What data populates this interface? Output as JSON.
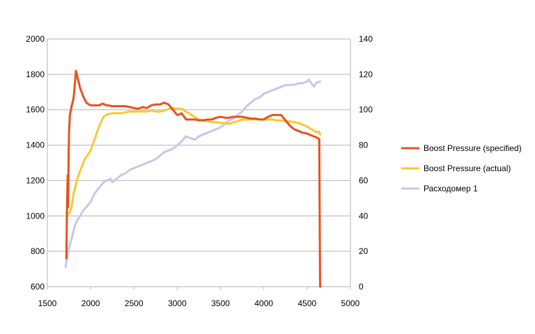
{
  "chart_data": {
    "type": "line",
    "title": "",
    "xlabel": "",
    "ylabel": "",
    "y2label": "",
    "xlim": [
      1500,
      5000
    ],
    "ylim": [
      600,
      2000
    ],
    "y2lim": [
      0,
      140
    ],
    "x_ticks": [
      "1500",
      "2000",
      "2500",
      "3000",
      "3500",
      "4000",
      "4500",
      "5000"
    ],
    "y_ticks": [
      "600",
      "800",
      "1000",
      "1200",
      "1400",
      "1600",
      "1800",
      "2000"
    ],
    "y2_ticks": [
      "0",
      "20",
      "40",
      "60",
      "80",
      "100",
      "120",
      "140"
    ],
    "grid": "horizontal",
    "legend_position": "right",
    "series": [
      {
        "name": "Boost Pressure (specified)",
        "color": "#e8501c",
        "axis": "left",
        "x": [
          1720,
          1725,
          1735,
          1740,
          1745,
          1750,
          1760,
          1780,
          1800,
          1810,
          1820,
          1830,
          1850,
          1880,
          1920,
          1950,
          1980,
          2000,
          2050,
          2100,
          2120,
          2140,
          2160,
          2180,
          2200,
          2250,
          2300,
          2350,
          2400,
          2450,
          2500,
          2550,
          2600,
          2650,
          2700,
          2750,
          2800,
          2850,
          2900,
          2950,
          3000,
          3030,
          3050,
          3080,
          3100,
          3150,
          3200,
          3250,
          3300,
          3350,
          3400,
          3450,
          3500,
          3550,
          3600,
          3650,
          3700,
          3750,
          3800,
          3850,
          3900,
          3950,
          4000,
          4050,
          4100,
          4150,
          4200,
          4250,
          4300,
          4350,
          4400,
          4450,
          4500,
          4550,
          4600,
          4640,
          4645,
          4650,
          4655
        ],
        "y": [
          760,
          1010,
          1230,
          1050,
          1330,
          1470,
          1570,
          1620,
          1660,
          1700,
          1760,
          1820,
          1780,
          1720,
          1670,
          1640,
          1630,
          1625,
          1625,
          1625,
          1630,
          1635,
          1630,
          1625,
          1625,
          1620,
          1620,
          1620,
          1620,
          1615,
          1610,
          1605,
          1615,
          1610,
          1625,
          1630,
          1630,
          1640,
          1630,
          1600,
          1570,
          1575,
          1580,
          1560,
          1545,
          1545,
          1545,
          1540,
          1540,
          1545,
          1545,
          1555,
          1560,
          1555,
          1555,
          1560,
          1560,
          1560,
          1555,
          1550,
          1550,
          1545,
          1545,
          1560,
          1570,
          1570,
          1570,
          1540,
          1510,
          1490,
          1480,
          1470,
          1465,
          1455,
          1445,
          1435,
          1000,
          600,
          600
        ]
      },
      {
        "name": "Boost Pressure (actual)",
        "color": "#f7c92e",
        "axis": "left",
        "x": [
          1720,
          1740,
          1760,
          1780,
          1800,
          1830,
          1860,
          1900,
          1930,
          1960,
          2000,
          2050,
          2100,
          2150,
          2180,
          2200,
          2250,
          2300,
          2350,
          2400,
          2450,
          2500,
          2550,
          2600,
          2650,
          2700,
          2750,
          2800,
          2850,
          2900,
          2950,
          3000,
          3050,
          3100,
          3150,
          3200,
          3250,
          3300,
          3350,
          3400,
          3450,
          3500,
          3550,
          3600,
          3650,
          3700,
          3750,
          3800,
          3850,
          3900,
          3950,
          4000,
          4050,
          4100,
          4150,
          4200,
          4250,
          4300,
          4350,
          4400,
          4450,
          4500,
          4550,
          4600,
          4640,
          4650
        ],
        "y": [
          1020,
          1010,
          1020,
          1050,
          1120,
          1180,
          1230,
          1280,
          1320,
          1340,
          1370,
          1440,
          1510,
          1560,
          1570,
          1575,
          1580,
          1580,
          1580,
          1585,
          1590,
          1590,
          1590,
          1590,
          1590,
          1595,
          1590,
          1590,
          1595,
          1605,
          1610,
          1605,
          1605,
          1590,
          1575,
          1560,
          1545,
          1540,
          1535,
          1530,
          1530,
          1525,
          1525,
          1520,
          1530,
          1535,
          1545,
          1545,
          1545,
          1545,
          1545,
          1545,
          1545,
          1545,
          1540,
          1540,
          1535,
          1535,
          1530,
          1525,
          1515,
          1505,
          1490,
          1475,
          1475,
          1460
        ]
      },
      {
        "name": "Расходомер 1",
        "color": "#c6c6ef",
        "axis": "right",
        "x": [
          1710,
          1720,
          1730,
          1750,
          1780,
          1800,
          1820,
          1850,
          1880,
          1900,
          1950,
          2000,
          2050,
          2100,
          2150,
          2180,
          2200,
          2230,
          2250,
          2300,
          2350,
          2400,
          2450,
          2500,
          2550,
          2600,
          2650,
          2700,
          2750,
          2800,
          2850,
          2900,
          2950,
          3000,
          3050,
          3100,
          3150,
          3200,
          3250,
          3300,
          3350,
          3400,
          3450,
          3500,
          3550,
          3600,
          3650,
          3700,
          3750,
          3800,
          3850,
          3900,
          3950,
          4000,
          4050,
          4100,
          4150,
          4200,
          4250,
          4300,
          4350,
          4400,
          4450,
          4500,
          4520,
          4550,
          4580,
          4600,
          4650
        ],
        "y": [
          11,
          14,
          17,
          22,
          27,
          31,
          35,
          38,
          40,
          42,
          45,
          48,
          53,
          56,
          59,
          60,
          60,
          61,
          59,
          61,
          63,
          64,
          66,
          67,
          68,
          69,
          70,
          71,
          72,
          74,
          76,
          77,
          78,
          80,
          82,
          85,
          84,
          83,
          85,
          86,
          87,
          88,
          89,
          90,
          92,
          94,
          95,
          97,
          99,
          102,
          104,
          106,
          107,
          109,
          110,
          111,
          112,
          113,
          114,
          114,
          114,
          115,
          115,
          116,
          117,
          115,
          113,
          115,
          116
        ]
      }
    ]
  }
}
